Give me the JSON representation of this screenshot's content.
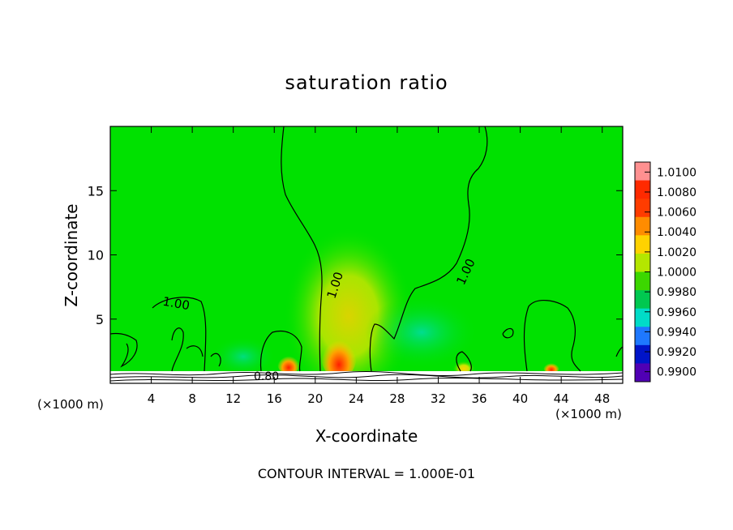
{
  "chart_data": {
    "type": "heatmap",
    "title": "saturation ratio",
    "xlabel": "X-coordinate",
    "ylabel": "Z-coordinate",
    "x_unit_label": "(×1000 m)",
    "x_ticks": [
      4,
      8,
      12,
      16,
      20,
      24,
      28,
      32,
      36,
      40,
      44,
      48
    ],
    "y_ticks": [
      5,
      10,
      15
    ],
    "xlim": [
      0,
      50
    ],
    "ylim": [
      0,
      20
    ],
    "colorbar": {
      "labels": [
        "1.0100",
        "1.0080",
        "1.0060",
        "1.0040",
        "1.0020",
        "1.0000",
        "0.9980",
        "0.9960",
        "0.9940",
        "0.9920",
        "0.9900"
      ],
      "colors": [
        "#ff9090",
        "#ff2a00",
        "#ff3c00",
        "#ff8c00",
        "#ffd200",
        "#b4e600",
        "#3cd700",
        "#00c850",
        "#00dcc8",
        "#1e78ff",
        "#0014c8",
        "#5000b4"
      ]
    },
    "contour_labels": [
      "1.00",
      "1.00",
      "1.00",
      "0.80"
    ],
    "annotation": "CONTOUR INTERVAL = 1.000E-01"
  }
}
